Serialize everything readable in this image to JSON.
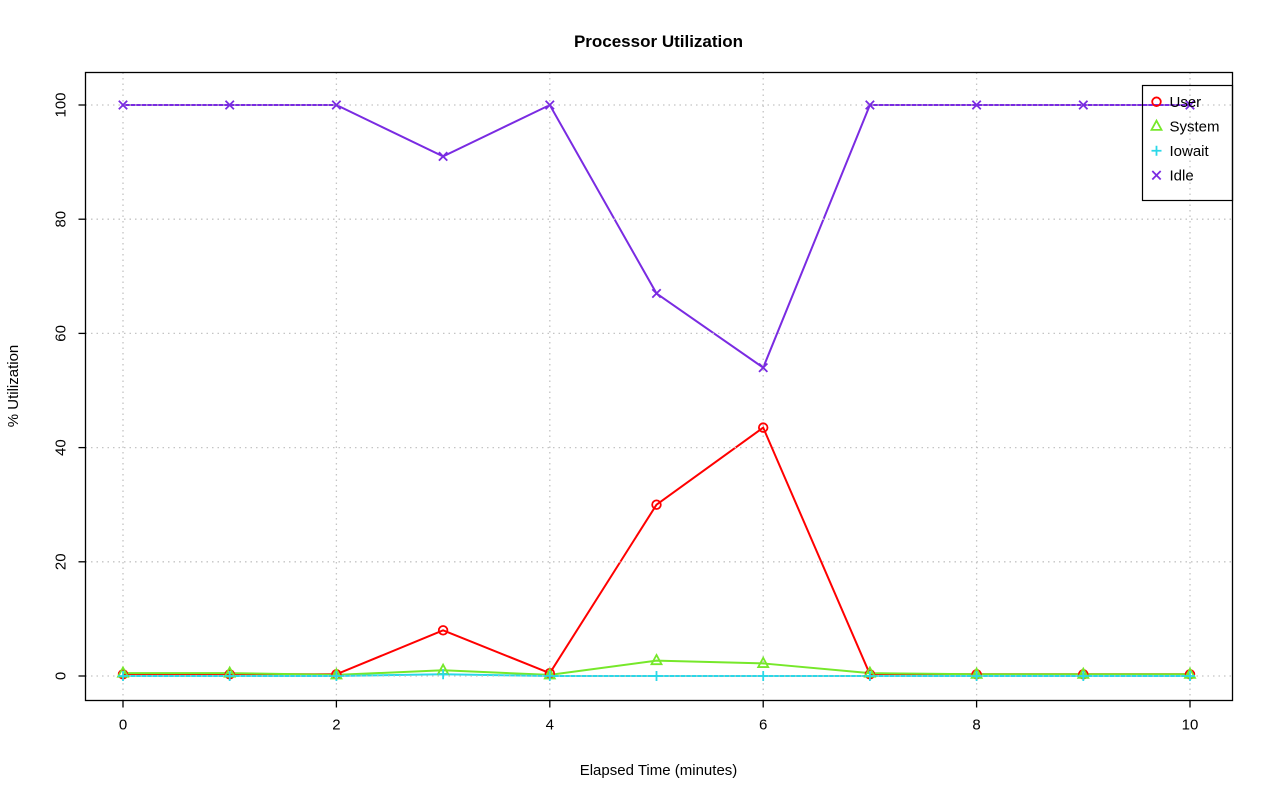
{
  "chart_data": {
    "type": "line",
    "title": "Processor Utilization",
    "xlabel": "Elapsed Time (minutes)",
    "ylabel": "% Utilization",
    "xlim": [
      0,
      10
    ],
    "ylim": [
      0,
      100
    ],
    "x_ticks": [
      0,
      2,
      4,
      6,
      8,
      10
    ],
    "y_ticks": [
      0,
      20,
      40,
      60,
      80,
      100
    ],
    "grid": true,
    "legend_position": "top-right",
    "x": [
      0,
      1,
      2,
      3,
      4,
      5,
      6,
      7,
      8,
      9,
      10
    ],
    "series": [
      {
        "name": "User",
        "color": "#ff0000",
        "marker": "circle",
        "values": [
          0.3,
          0.3,
          0.3,
          8,
          0.5,
          30,
          43.5,
          0.3,
          0.3,
          0.3,
          0.3
        ]
      },
      {
        "name": "System",
        "color": "#76e82a",
        "marker": "triangle",
        "values": [
          0.5,
          0.5,
          0.2,
          1,
          0.2,
          2.7,
          2.2,
          0.5,
          0.3,
          0.3,
          0.3
        ]
      },
      {
        "name": "Iowait",
        "color": "#2ad8e8",
        "marker": "plus",
        "values": [
          0,
          0,
          0,
          0.3,
          0,
          0,
          0,
          0,
          0,
          0,
          0
        ]
      },
      {
        "name": "Idle",
        "color": "#7a2be2",
        "marker": "x",
        "values": [
          100,
          100,
          100,
          91,
          100,
          67,
          54,
          100,
          100,
          100,
          100
        ]
      }
    ]
  },
  "style_colors": {
    "grid": "#c4c4c4",
    "axis": "#000000",
    "text": "#000000"
  }
}
